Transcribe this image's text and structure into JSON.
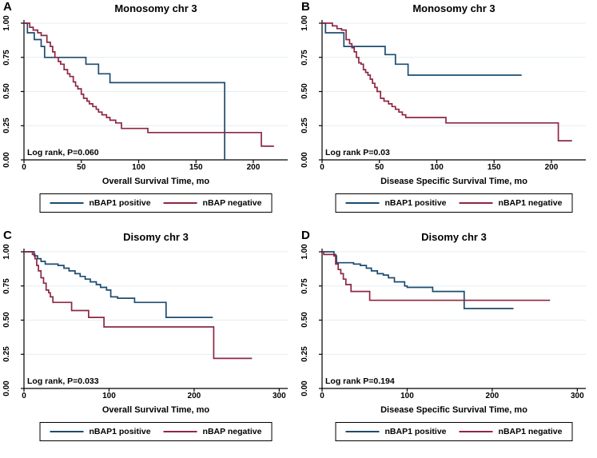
{
  "colors": {
    "positive": "#1d4c70",
    "negative": "#8e2742",
    "grid": "#e4eef2",
    "axis": "#000000"
  },
  "chart_data": [
    {
      "type": "line",
      "letter": "A",
      "title": "Monosomy chr 3",
      "xlabel": "Overall Survival Time, mo",
      "ylabel": "",
      "p_value_label": "Log rank, P=0.060",
      "xlim": [
        0,
        230
      ],
      "ylim": [
        0,
        1
      ],
      "x_ticks": [
        "0",
        "50",
        "100",
        "150",
        "200"
      ],
      "y_ticks": [
        "0.00",
        "0.25",
        "0.50",
        "0.75",
        "1.00"
      ],
      "grid": "horizontal",
      "legend_position": "bottom",
      "legend": [
        {
          "label": "nBAP1 positive",
          "color_key": "positive"
        },
        {
          "label": "nBAP negative",
          "color_key": "negative"
        }
      ],
      "series": [
        {
          "name": "nBAP1 positive",
          "color_key": "positive",
          "points": [
            [
              0,
              1.0
            ],
            [
              3,
              0.93
            ],
            [
              9,
              0.88
            ],
            [
              15,
              0.83
            ],
            [
              18,
              0.75
            ],
            [
              54,
              0.7
            ],
            [
              65,
              0.63
            ],
            [
              75,
              0.565
            ],
            [
              175,
              0.565
            ],
            [
              175,
              0.0
            ]
          ]
        },
        {
          "name": "nBAP negative",
          "color_key": "negative",
          "points": [
            [
              0,
              1.0
            ],
            [
              5,
              0.97
            ],
            [
              8,
              0.95
            ],
            [
              12,
              0.93
            ],
            [
              15,
              0.91
            ],
            [
              20,
              0.86
            ],
            [
              23,
              0.83
            ],
            [
              25,
              0.79
            ],
            [
              27,
              0.75
            ],
            [
              30,
              0.72
            ],
            [
              32,
              0.7
            ],
            [
              35,
              0.66
            ],
            [
              38,
              0.63
            ],
            [
              40,
              0.61
            ],
            [
              43,
              0.57
            ],
            [
              45,
              0.54
            ],
            [
              47,
              0.52
            ],
            [
              50,
              0.48
            ],
            [
              52,
              0.45
            ],
            [
              55,
              0.43
            ],
            [
              57,
              0.41
            ],
            [
              60,
              0.39
            ],
            [
              63,
              0.37
            ],
            [
              65,
              0.35
            ],
            [
              68,
              0.33
            ],
            [
              72,
              0.31
            ],
            [
              75,
              0.29
            ],
            [
              80,
              0.27
            ],
            [
              85,
              0.23
            ],
            [
              108,
              0.2
            ],
            [
              207,
              0.1
            ],
            [
              218,
              0.1
            ]
          ]
        }
      ]
    },
    {
      "type": "line",
      "letter": "B",
      "title": "Monosomy chr 3",
      "xlabel": "Disease Specific Survival Time, mo",
      "ylabel": "",
      "p_value_label": "Log rank P=0.03",
      "xlim": [
        0,
        230
      ],
      "ylim": [
        0,
        1
      ],
      "x_ticks": [
        "0",
        "50",
        "100",
        "150",
        "200"
      ],
      "y_ticks": [
        "0.00",
        "0.25",
        "0.50",
        "0.75",
        "1.00"
      ],
      "grid": "horizontal",
      "legend_position": "bottom",
      "legend": [
        {
          "label": "nBAP1 positive",
          "color_key": "positive"
        },
        {
          "label": "nBAP1 negative",
          "color_key": "negative"
        }
      ],
      "series": [
        {
          "name": "nBAP1 positive",
          "color_key": "positive",
          "points": [
            [
              0,
              1.0
            ],
            [
              3,
              0.93
            ],
            [
              19,
              0.83
            ],
            [
              55,
              0.77
            ],
            [
              64,
              0.7
            ],
            [
              75,
              0.62
            ],
            [
              174,
              0.62
            ]
          ]
        },
        {
          "name": "nBAP1 negative",
          "color_key": "negative",
          "points": [
            [
              0,
              1.0
            ],
            [
              9,
              0.98
            ],
            [
              13,
              0.96
            ],
            [
              17,
              0.95
            ],
            [
              21,
              0.88
            ],
            [
              24,
              0.85
            ],
            [
              26,
              0.82
            ],
            [
              28,
              0.79
            ],
            [
              30,
              0.75
            ],
            [
              32,
              0.71
            ],
            [
              34,
              0.7
            ],
            [
              36,
              0.66
            ],
            [
              38,
              0.64
            ],
            [
              40,
              0.62
            ],
            [
              42,
              0.59
            ],
            [
              44,
              0.56
            ],
            [
              46,
              0.53
            ],
            [
              48,
              0.5
            ],
            [
              51,
              0.45
            ],
            [
              54,
              0.43
            ],
            [
              58,
              0.41
            ],
            [
              61,
              0.39
            ],
            [
              64,
              0.37
            ],
            [
              67,
              0.35
            ],
            [
              70,
              0.33
            ],
            [
              73,
              0.31
            ],
            [
              108,
              0.27
            ],
            [
              206,
              0.14
            ],
            [
              218,
              0.14
            ]
          ]
        }
      ]
    },
    {
      "type": "line",
      "letter": "C",
      "title": "Disomy chr 3",
      "xlabel": "Overall Survival Time, mo",
      "ylabel": "",
      "p_value_label": "Log rank, P=0.033",
      "xlim": [
        0,
        310
      ],
      "ylim": [
        0,
        1
      ],
      "x_ticks": [
        "0",
        "100",
        "200",
        "300"
      ],
      "y_ticks": [
        "0.00",
        "0.25",
        "0.50",
        "0.75",
        "1.00"
      ],
      "grid": "horizontal",
      "legend_position": "bottom",
      "legend": [
        {
          "label": "nBAP1 positive",
          "color_key": "positive"
        },
        {
          "label": "nBAP negative",
          "color_key": "negative"
        }
      ],
      "series": [
        {
          "name": "nBAP1 positive",
          "color_key": "positive",
          "points": [
            [
              0,
              1.0
            ],
            [
              12,
              0.97
            ],
            [
              16,
              0.95
            ],
            [
              20,
              0.93
            ],
            [
              25,
              0.91
            ],
            [
              40,
              0.9
            ],
            [
              47,
              0.88
            ],
            [
              53,
              0.86
            ],
            [
              60,
              0.84
            ],
            [
              66,
              0.82
            ],
            [
              72,
              0.8
            ],
            [
              78,
              0.78
            ],
            [
              85,
              0.76
            ],
            [
              90,
              0.74
            ],
            [
              97,
              0.72
            ],
            [
              102,
              0.67
            ],
            [
              110,
              0.66
            ],
            [
              130,
              0.63
            ],
            [
              167,
              0.52
            ],
            [
              222,
              0.52
            ]
          ]
        },
        {
          "name": "nBAP negative",
          "color_key": "negative",
          "points": [
            [
              0,
              1.0
            ],
            [
              10,
              0.98
            ],
            [
              13,
              0.95
            ],
            [
              15,
              0.9
            ],
            [
              17,
              0.86
            ],
            [
              20,
              0.81
            ],
            [
              23,
              0.77
            ],
            [
              26,
              0.72
            ],
            [
              29,
              0.7
            ],
            [
              31,
              0.67
            ],
            [
              34,
              0.63
            ],
            [
              56,
              0.57
            ],
            [
              76,
              0.52
            ],
            [
              94,
              0.45
            ],
            [
              223,
              0.22
            ],
            [
              268,
              0.22
            ]
          ]
        }
      ]
    },
    {
      "type": "line",
      "letter": "D",
      "title": "Disomy chr 3",
      "xlabel": "Disease Specific Survival Time, mo",
      "ylabel": "",
      "p_value_label": "Log rank P=0.194",
      "xlim": [
        0,
        310
      ],
      "ylim": [
        0,
        1
      ],
      "x_ticks": [
        "0",
        "100",
        "200",
        "300"
      ],
      "y_ticks": [
        "0.00",
        "0.25",
        "0.50",
        "0.75",
        "1.00"
      ],
      "grid": "horizontal",
      "legend_position": "bottom",
      "legend": [
        {
          "label": "nBAP1 positive",
          "color_key": "positive"
        },
        {
          "label": "nBAP1 negative",
          "color_key": "negative"
        }
      ],
      "series": [
        {
          "name": "nBAP1 positive",
          "color_key": "positive",
          "points": [
            [
              0,
              1.0
            ],
            [
              14,
              0.97
            ],
            [
              17,
              0.92
            ],
            [
              37,
              0.91
            ],
            [
              45,
              0.9
            ],
            [
              52,
              0.88
            ],
            [
              58,
              0.86
            ],
            [
              65,
              0.84
            ],
            [
              72,
              0.83
            ],
            [
              78,
              0.81
            ],
            [
              85,
              0.78
            ],
            [
              97,
              0.75
            ],
            [
              100,
              0.74
            ],
            [
              130,
              0.71
            ],
            [
              167,
              0.585
            ],
            [
              225,
              0.585
            ]
          ]
        },
        {
          "name": "nBAP1 negative",
          "color_key": "negative",
          "points": [
            [
              0,
              1.0
            ],
            [
              2,
              0.98
            ],
            [
              16,
              0.91
            ],
            [
              19,
              0.87
            ],
            [
              22,
              0.84
            ],
            [
              25,
              0.8
            ],
            [
              28,
              0.76
            ],
            [
              34,
              0.71
            ],
            [
              56,
              0.645
            ],
            [
              268,
              0.645
            ]
          ]
        }
      ]
    }
  ]
}
